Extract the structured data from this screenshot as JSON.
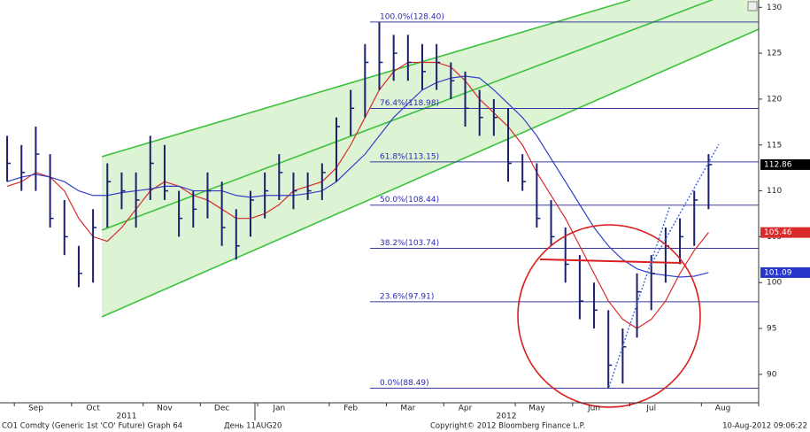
{
  "chart_data": {
    "type": "ohlc",
    "categories": [
      null,
      null,
      "Sep",
      null,
      null,
      null,
      "Oct",
      null,
      null,
      null,
      null,
      "Nov",
      null,
      null,
      null,
      "Dec",
      null,
      null,
      null,
      "Jan",
      null,
      null,
      null,
      null,
      "Feb",
      null,
      null,
      null,
      "Mar",
      null,
      null,
      null,
      "Apr",
      null,
      null,
      null,
      null,
      "May",
      null,
      null,
      null,
      "Jun",
      null,
      null,
      null,
      "Jul",
      null,
      null,
      null,
      null,
      "Aug",
      null,
      null
    ],
    "years": [
      "2011",
      "2012"
    ],
    "bar_color": "#1c1f6e",
    "high": [
      116,
      115,
      117,
      114,
      109,
      104,
      108,
      113,
      112,
      112,
      116,
      115,
      110,
      110,
      112,
      111,
      108,
      110,
      112,
      114,
      112,
      112,
      113,
      118,
      121,
      126,
      128.4,
      127,
      127,
      126,
      126,
      124,
      123,
      121,
      120,
      119,
      114,
      113,
      109,
      106,
      103,
      100,
      97,
      95,
      101,
      103,
      106,
      107,
      110,
      114,
      null,
      null,
      null
    ],
    "low": [
      111,
      110,
      110,
      106,
      103,
      99.5,
      100,
      106,
      108,
      106,
      109,
      109,
      105,
      106,
      107,
      104,
      102.5,
      105,
      107,
      109,
      108,
      109,
      109,
      111,
      116,
      118,
      121,
      122,
      122,
      121,
      121,
      120,
      117,
      116,
      116,
      111,
      110,
      106,
      104,
      100,
      96,
      95,
      88.49,
      89,
      94,
      97,
      100,
      102,
      104,
      108,
      null,
      null,
      null
    ],
    "close": [
      113,
      112,
      114,
      107,
      105,
      101,
      106,
      111,
      110,
      109,
      113,
      110,
      107,
      108,
      110,
      106,
      104,
      109,
      110,
      112,
      110,
      110,
      112,
      117,
      119,
      124,
      124,
      125,
      124,
      123,
      124,
      122,
      119,
      118,
      118,
      113,
      111,
      107,
      105,
      102,
      98,
      97,
      91,
      93,
      99,
      101,
      104,
      105,
      109,
      112.86,
      null,
      null,
      null
    ],
    "moving_averages": [
      {
        "color": "#d92b2b",
        "values": [
          110.5,
          111,
          112,
          111.5,
          110,
          107,
          105,
          104.5,
          106,
          108,
          110,
          111,
          110.5,
          109.5,
          109,
          108,
          107,
          107,
          107.5,
          108.5,
          110,
          110.5,
          111,
          112.5,
          115,
          118,
          121,
          123,
          124,
          124,
          124,
          123.5,
          122,
          120,
          118.5,
          117,
          115,
          112,
          109.5,
          107,
          104,
          101,
          98,
          96,
          95,
          96,
          98,
          101,
          103.5,
          105.46,
          null,
          null,
          null
        ]
      },
      {
        "color": "#3340c8",
        "values": [
          111,
          111.5,
          111.8,
          111.5,
          111,
          110,
          109.5,
          109.5,
          109.8,
          110,
          110.2,
          110.5,
          110.5,
          110,
          110,
          110,
          109.5,
          109.3,
          109.5,
          109.5,
          109.5,
          109.7,
          110,
          111,
          112.5,
          114,
          116,
          118,
          119.5,
          121,
          121.8,
          122.3,
          122.5,
          122.3,
          121,
          119.5,
          118,
          116,
          113.5,
          111,
          108.5,
          106,
          104,
          102.5,
          101.5,
          101,
          100.8,
          100.6,
          100.7,
          101.09,
          null,
          null,
          null
        ]
      }
    ],
    "fib_levels": {
      "color": "#3a3a9c",
      "values": [
        128.4,
        118.98,
        113.15,
        108.44,
        103.74,
        97.91,
        88.49
      ],
      "value_labels": [
        "100.0%(128.40)",
        "76.4%(118.98)",
        "61.8%(113.15)",
        "50.0%(108.44)",
        "38.2%(103.74)",
        "23.6%(97.91)",
        "0.0%(88.49)"
      ]
    },
    "last_values": [
      {
        "value": 112.86,
        "color": "#000000"
      },
      {
        "value": 105.46,
        "color": "#d92b2b"
      },
      {
        "value": 101.09,
        "color": "#2536c8"
      }
    ],
    "ylim": [
      86.9,
      130.8
    ],
    "yticks": [
      90,
      95,
      100,
      105,
      110,
      115,
      120,
      125,
      130
    ],
    "footer": {
      "left": "CO1 Comdty (Generic 1st 'CO' Future) Graph 64",
      "center_left": "День 11AUG20",
      "center": "Copyright© 2012 Bloomberg Finance L.P.",
      "right": "10-Aug-2012 09:06:22"
    }
  }
}
